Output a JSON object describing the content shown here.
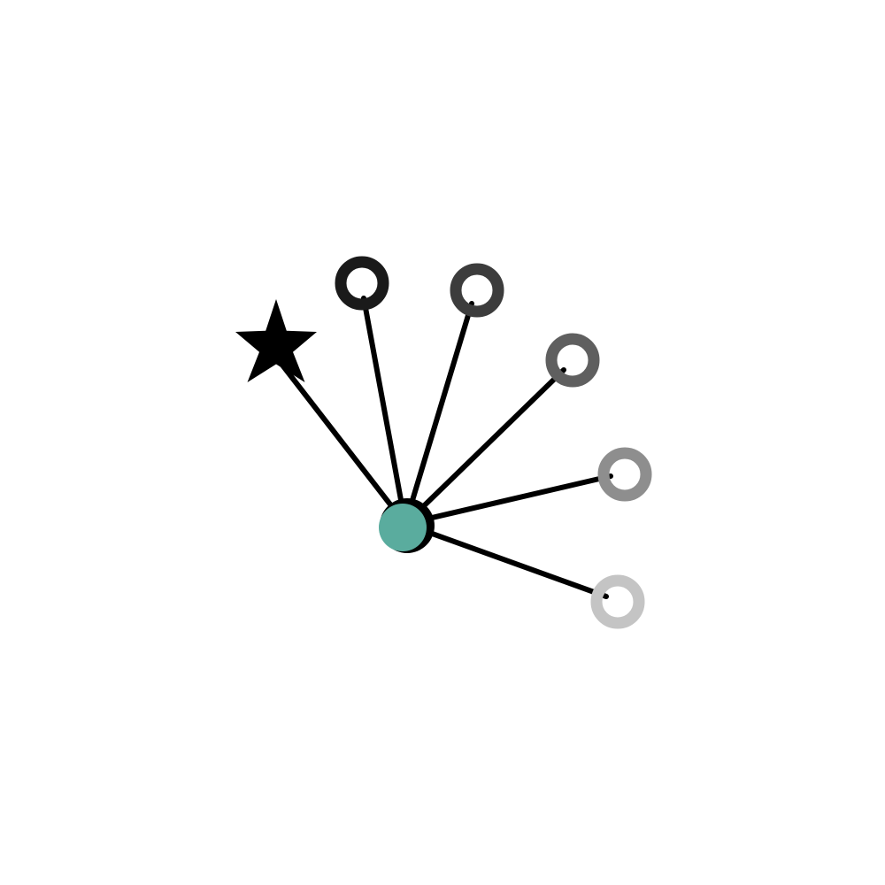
{
  "colors": {
    "background": "#ffffff",
    "edge": "#000000",
    "hub_fill": "#5aac9e",
    "hub_outline": "#000000",
    "star_fill": "#000000",
    "ring_inner": "#ffffff"
  },
  "hub": {
    "icon": "filled-circle",
    "fill": "#5aac9e"
  },
  "spokes": [
    {
      "id": "star",
      "marker": "star-icon",
      "color": "#000000",
      "opacity": 1.0
    },
    {
      "id": "ring-1",
      "marker": "ring-icon",
      "color": "#1a1a1a",
      "opacity": 1.0
    },
    {
      "id": "ring-2",
      "marker": "ring-icon",
      "color": "#3c3c3c",
      "opacity": 1.0
    },
    {
      "id": "ring-3",
      "marker": "ring-icon",
      "color": "#5f5f5f",
      "opacity": 1.0
    },
    {
      "id": "ring-4",
      "marker": "ring-icon",
      "color": "#8e8e8e",
      "opacity": 1.0
    },
    {
      "id": "ring-5",
      "marker": "ring-icon",
      "color": "#c4c4c4",
      "opacity": 1.0
    }
  ]
}
